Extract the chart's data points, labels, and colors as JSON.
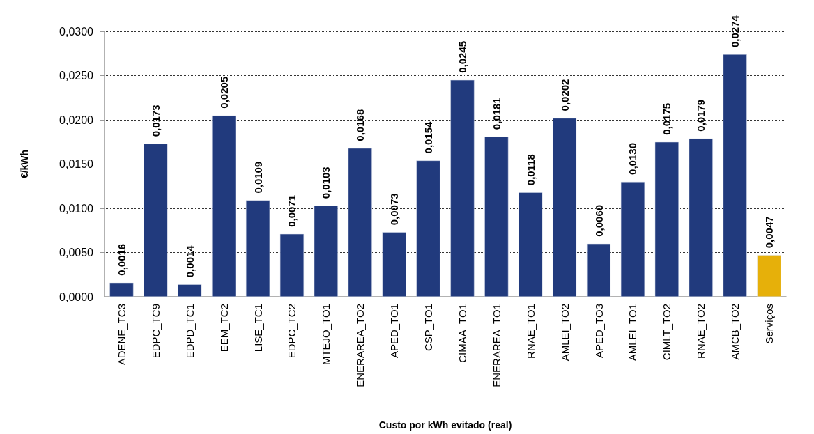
{
  "chart_data": {
    "type": "bar",
    "xlabel": "Custo por kWh evitado (real)",
    "ylabel": "€/kWh",
    "categories": [
      "ADENE_TC3",
      "EDPC_TC9",
      "EDPD_TC1",
      "EEM_TC2",
      "LISE_TC1",
      "EDPC_TC2",
      "MTEJO_TO1",
      "ENERAREA_TO2",
      "APED_TO1",
      "CSP_TO1",
      "CIMAA_TO1",
      "ENERAREA_TO1",
      "RNAE_TO1",
      "AMLEI_TO2",
      "APED_TO3",
      "AMLEI_TO1",
      "CIMLT_TO2",
      "RNAE_TO2",
      "AMCB_TO2",
      "Serviços"
    ],
    "values": [
      0.0016,
      0.0173,
      0.0014,
      0.0205,
      0.0109,
      0.0071,
      0.0103,
      0.0168,
      0.0073,
      0.0154,
      0.0245,
      0.0181,
      0.0118,
      0.0202,
      0.006,
      0.013,
      0.0175,
      0.0179,
      0.0274,
      0.0047
    ],
    "value_labels": [
      "0,0016",
      "0,0173",
      "0,0014",
      "0,0205",
      "0,0109",
      "0,0071",
      "0,0103",
      "0,0168",
      "0,0073",
      "0,0154",
      "0,0245",
      "0,0181",
      "0,0118",
      "0,0202",
      "0,0060",
      "0,0130",
      "0,0175",
      "0,0179",
      "0,0274",
      "0,0047"
    ],
    "colors": [
      "#213a7d",
      "#213a7d",
      "#213a7d",
      "#213a7d",
      "#213a7d",
      "#213a7d",
      "#213a7d",
      "#213a7d",
      "#213a7d",
      "#213a7d",
      "#213a7d",
      "#213a7d",
      "#213a7d",
      "#213a7d",
      "#213a7d",
      "#213a7d",
      "#213a7d",
      "#213a7d",
      "#213a7d",
      "#e6b00a"
    ],
    "ylim": [
      0,
      0.03
    ],
    "yticks": [
      {
        "value": 0,
        "label": "0,0000"
      },
      {
        "value": 0.005,
        "label": "0,0050"
      },
      {
        "value": 0.01,
        "label": "0,0100"
      },
      {
        "value": 0.015,
        "label": "0,0150"
      },
      {
        "value": 0.02,
        "label": "0,0200"
      },
      {
        "value": 0.025,
        "label": "0,0250"
      },
      {
        "value": 0.03,
        "label": "0,0300"
      }
    ],
    "grid": "y"
  }
}
